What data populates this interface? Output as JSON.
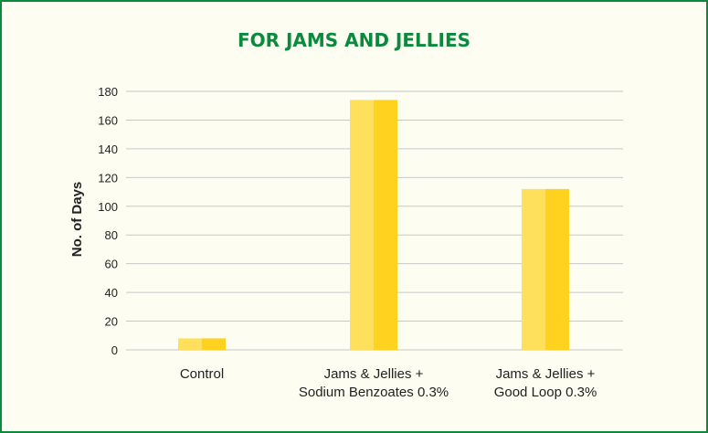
{
  "chart_data": {
    "type": "bar",
    "title": "FOR JAMS AND JELLIES",
    "ylabel": "No. of Days",
    "xlabel": "",
    "ylim": [
      0,
      180
    ],
    "yticks": [
      0,
      20,
      40,
      60,
      80,
      100,
      120,
      140,
      160,
      180
    ],
    "grid": true,
    "categories": [
      [
        "Control"
      ],
      [
        "Jams & Jellies +",
        "Sodium Benzoates 0.3%"
      ],
      [
        "Jams & Jellies  +",
        "Good Loop 0.3%"
      ]
    ],
    "values": [
      8,
      174,
      112
    ]
  },
  "colors": {
    "border": "#0b8a3e",
    "title": "#0b8a3e",
    "background": "#fdfdf2",
    "bar_light": "#ffe05c",
    "bar_dark": "#ffd21f",
    "grid": "#c8c8c8",
    "text": "#222222"
  }
}
